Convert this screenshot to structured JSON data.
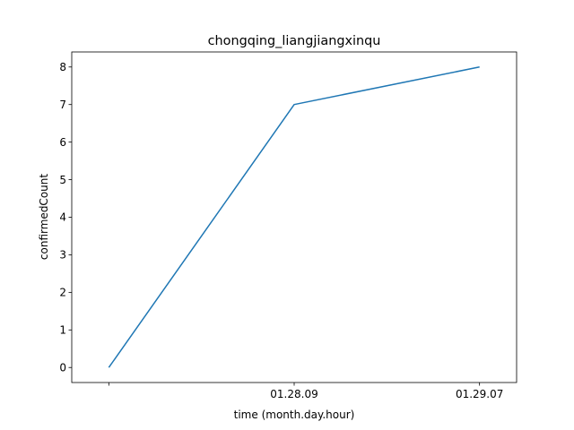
{
  "chart_data": {
    "type": "line",
    "title": "chongqing_liangjiangxinqu",
    "xlabel": "time (month.day.hour)",
    "ylabel": "confirmedCount",
    "x": [
      "",
      "01.28.09",
      "01.29.07"
    ],
    "series": [
      {
        "values": [
          0,
          7,
          8
        ],
        "color": "#1f77b4"
      }
    ],
    "ylim": [
      -0.4,
      8.4
    ],
    "yticks": [
      0,
      1,
      2,
      3,
      4,
      5,
      6,
      7,
      8
    ],
    "grid": false,
    "legend": "none"
  }
}
